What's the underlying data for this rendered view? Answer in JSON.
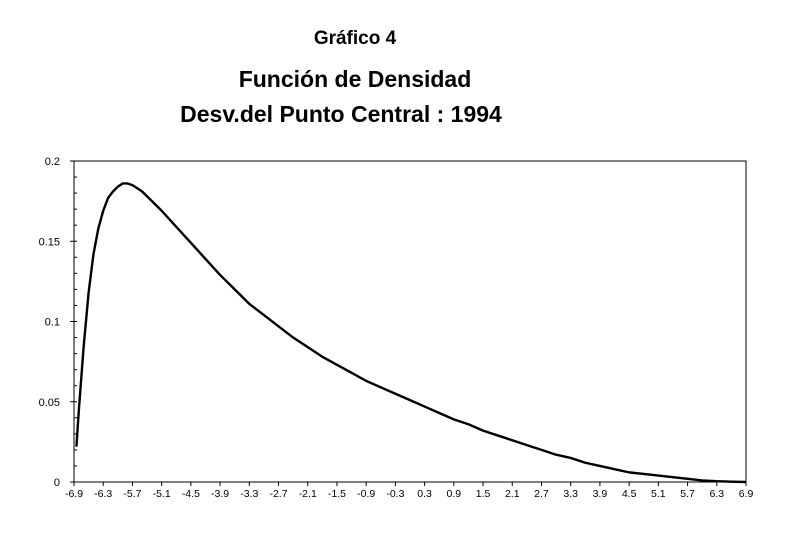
{
  "chart_data": {
    "type": "line",
    "figure_label": "Gráfico 4",
    "title": "Función de Densidad",
    "subtitle": "Desv.del Punto Central : 1994",
    "xlabel": "",
    "ylabel": "",
    "xlim": [
      -6.9,
      6.9
    ],
    "ylim": [
      0,
      0.2
    ],
    "x_ticks": [
      "-6.9",
      "-6.3",
      "-5.7",
      "-5.1",
      "-4.5",
      "-3.9",
      "-3.3",
      "-2.7",
      "-2.1",
      "-1.5",
      "-0.9",
      "-0.3",
      "0.3",
      "0.9",
      "1.5",
      "2.1",
      "2.7",
      "3.3",
      "3.9",
      "4.5",
      "5.1",
      "5.7",
      "6.3",
      "6.9"
    ],
    "y_ticks": [
      "0",
      "0.05",
      "0.1",
      "0.15",
      "0.2"
    ],
    "grid": false,
    "legend": "none",
    "series": [
      {
        "color": "#000000",
        "x": [
          -6.85,
          -6.8,
          -6.7,
          -6.6,
          -6.5,
          -6.4,
          -6.3,
          -6.2,
          -6.1,
          -6.0,
          -5.9,
          -5.8,
          -5.7,
          -5.6,
          -5.5,
          -5.3,
          -5.1,
          -4.8,
          -4.5,
          -4.2,
          -3.9,
          -3.6,
          -3.3,
          -3.0,
          -2.7,
          -2.4,
          -2.1,
          -1.8,
          -1.5,
          -1.2,
          -0.9,
          -0.6,
          -0.3,
          0.0,
          0.3,
          0.6,
          0.9,
          1.2,
          1.5,
          1.8,
          2.1,
          2.4,
          2.7,
          3.0,
          3.3,
          3.6,
          3.9,
          4.2,
          4.5,
          4.8,
          5.1,
          5.4,
          5.7,
          6.0,
          6.3,
          6.6,
          6.9
        ],
        "values": [
          0.022,
          0.045,
          0.085,
          0.118,
          0.142,
          0.158,
          0.169,
          0.177,
          0.181,
          0.184,
          0.186,
          0.186,
          0.185,
          0.183,
          0.181,
          0.175,
          0.169,
          0.159,
          0.149,
          0.139,
          0.129,
          0.12,
          0.111,
          0.104,
          0.097,
          0.09,
          0.084,
          0.078,
          0.073,
          0.068,
          0.063,
          0.059,
          0.055,
          0.051,
          0.047,
          0.043,
          0.039,
          0.036,
          0.032,
          0.029,
          0.026,
          0.023,
          0.02,
          0.017,
          0.015,
          0.012,
          0.01,
          0.008,
          0.006,
          0.005,
          0.004,
          0.003,
          0.002,
          0.001,
          0.0005,
          0.0002,
          0.0
        ]
      }
    ]
  }
}
